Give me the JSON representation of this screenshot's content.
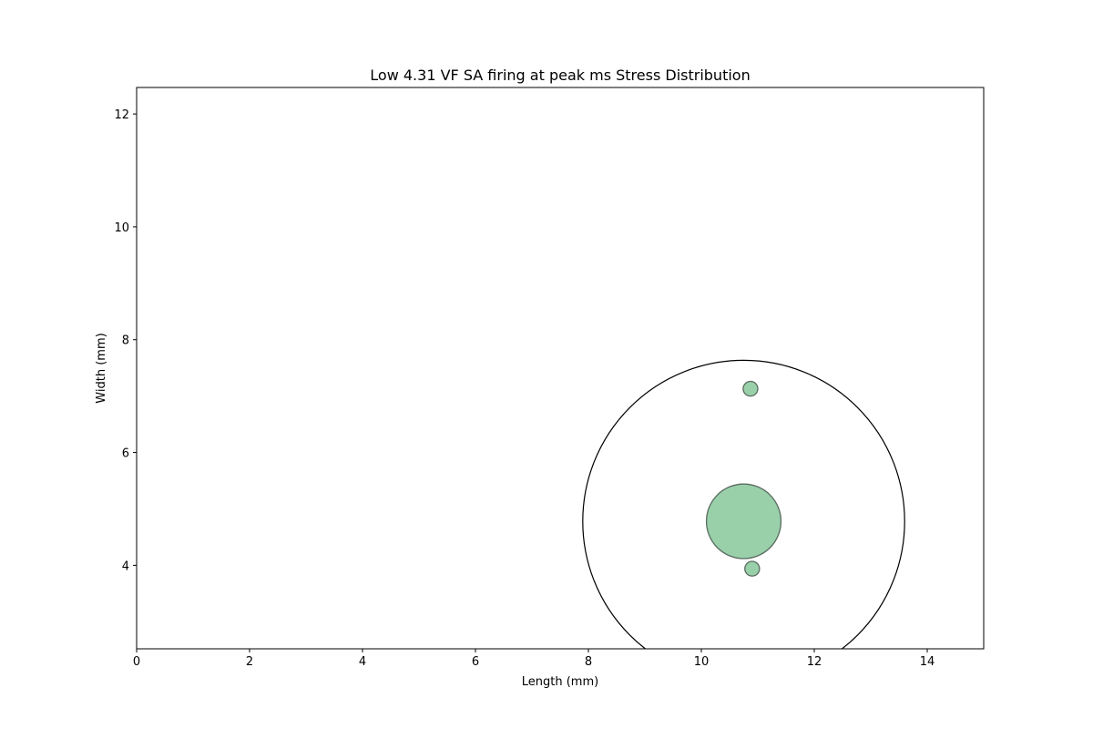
{
  "chart_data": {
    "type": "scatter",
    "title": "Low 4.31 VF SA firing at peak ms Stress Distribution",
    "xlabel": "Length (mm)",
    "ylabel": "Width (mm)",
    "xlim": [
      0,
      15
    ],
    "ylim": [
      2.52,
      12.47
    ],
    "xticks": [
      0,
      2,
      4,
      6,
      8,
      10,
      12,
      14
    ],
    "yticks": [
      4,
      6,
      8,
      10,
      12
    ],
    "grid": false,
    "outline_circle": {
      "center": [
        10.75,
        4.78
      ],
      "radius": 2.85,
      "color": "#000000"
    },
    "points": [
      {
        "x": 10.75,
        "y": 4.78,
        "radius": 0.66
      },
      {
        "x": 10.87,
        "y": 7.13,
        "radius": 0.13
      },
      {
        "x": 10.9,
        "y": 3.94,
        "radius": 0.13
      }
    ],
    "point_fill": "#99d0aa",
    "point_edge": "#5a6b60"
  }
}
